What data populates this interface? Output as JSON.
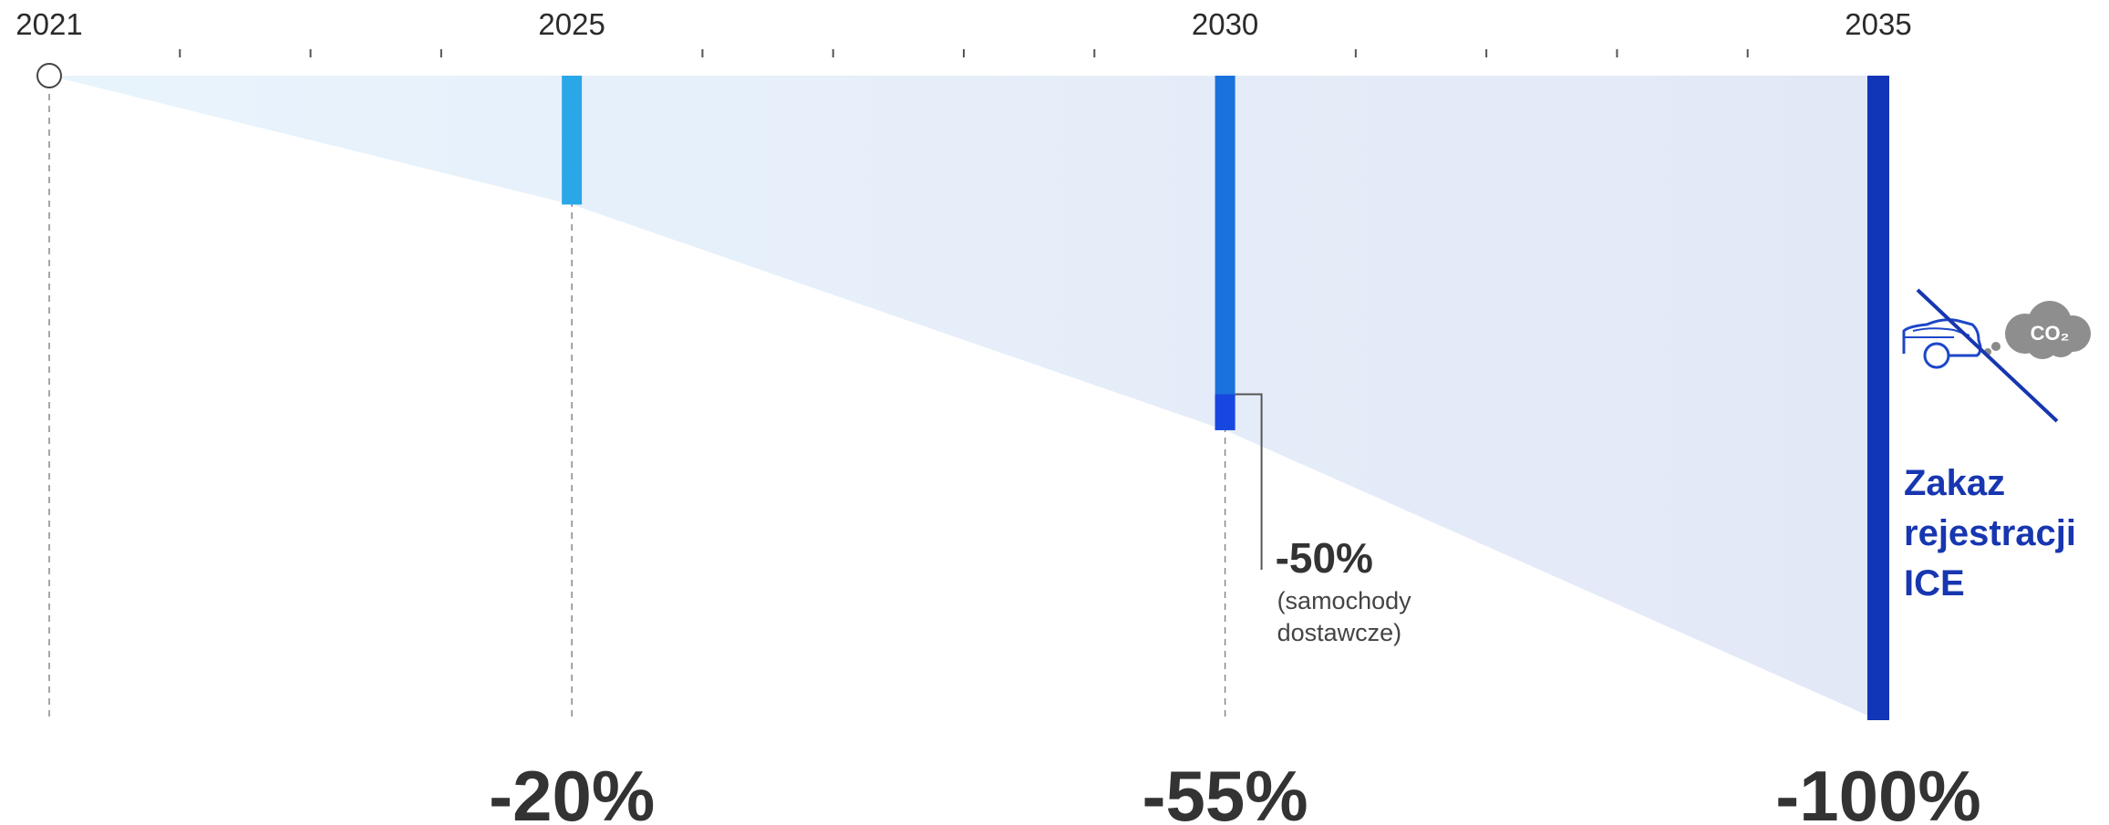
{
  "chart_data": {
    "type": "area",
    "x": [
      2021,
      2025,
      2030,
      2035
    ],
    "x_tick_labels": [
      "2021",
      "2025",
      "2030",
      "2035"
    ],
    "xlim": [
      2021,
      2035
    ],
    "ylim": [
      0,
      -100
    ],
    "series": [
      {
        "values": [
          0,
          -20,
          -55,
          -100
        ]
      }
    ],
    "milestones": [
      {
        "year": 2025,
        "value_label": "-20%",
        "color": "#2aa7e6"
      },
      {
        "year": 2030,
        "value_label": "-55%",
        "color": "#1a72dc"
      },
      {
        "year": 2035,
        "value_label": "-100%",
        "color": "#1236b8"
      }
    ],
    "annotation": {
      "year": 2030,
      "value": -50,
      "label": "-50%",
      "note_lines": [
        "(samochody",
        "dostawcze)"
      ],
      "color": "#1746e0"
    },
    "ban_label_lines": [
      "Zakaz",
      "rejestracji",
      "ICE"
    ],
    "ban_icon": "car-co2-crossed-icon",
    "ban_icon_text": "CO₂",
    "grid": true,
    "colors": {
      "area_start": "#e8f4fc",
      "area_end": "#e3e8f7",
      "text": "#333333",
      "ban_text": "#1736b0"
    }
  }
}
